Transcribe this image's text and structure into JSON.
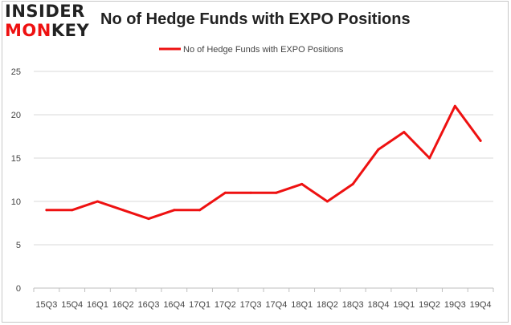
{
  "logo": {
    "line1": "INSIDER",
    "line2": "MONKEY"
  },
  "colors": {
    "series": "#ee1111",
    "grid": "#d9d9d9",
    "axis": "#bfbfbf",
    "border": "#c8c8c8",
    "logo_dark": "#222222",
    "logo_accent": "#ee1111"
  },
  "chart_data": {
    "type": "line",
    "title": "No of Hedge Funds with EXPO Positions",
    "xlabel": "",
    "ylabel": "",
    "categories": [
      "15Q3",
      "15Q4",
      "16Q1",
      "16Q2",
      "16Q3",
      "16Q4",
      "17Q1",
      "17Q2",
      "17Q3",
      "17Q4",
      "18Q1",
      "18Q2",
      "18Q3",
      "18Q4",
      "19Q1",
      "19Q2",
      "19Q3",
      "19Q4"
    ],
    "series": [
      {
        "name": "No of Hedge Funds with EXPO Positions",
        "values": [
          9,
          9,
          10,
          9,
          8,
          9,
          9,
          11,
          11,
          11,
          12,
          10,
          12,
          16,
          18,
          15,
          21,
          17
        ]
      }
    ],
    "ylim": [
      0,
      25
    ],
    "yticks": [
      0,
      5,
      10,
      15,
      20,
      25
    ],
    "grid": true,
    "legend": "top-center"
  }
}
